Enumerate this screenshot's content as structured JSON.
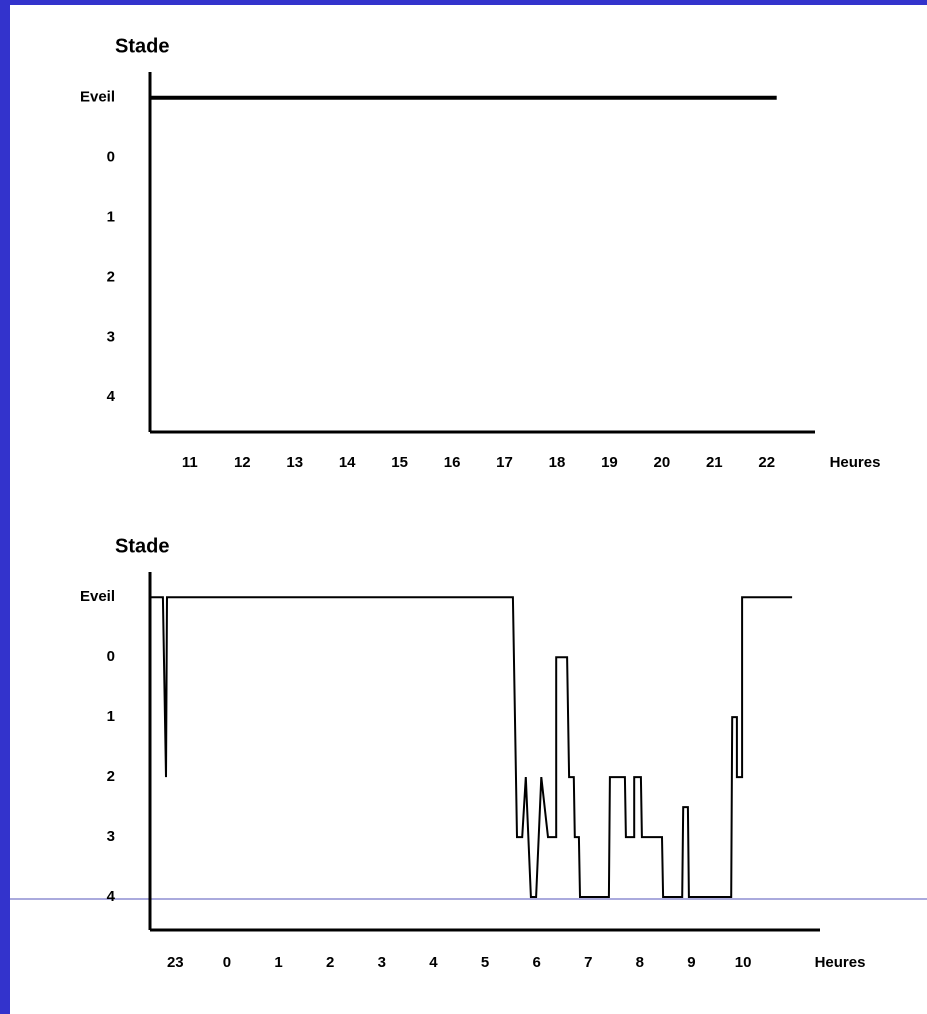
{
  "chart_data": [
    {
      "type": "line",
      "y_label": "Stade",
      "x_label": "Heures",
      "xlim": [
        10.24,
        22.92
      ],
      "xticks": [
        11,
        12,
        13,
        14,
        15,
        16,
        17,
        18,
        19,
        20,
        21,
        22
      ],
      "ylim": [
        4.58,
        -1.43
      ],
      "yticks": [
        {
          "value": -1,
          "label": "Eveil"
        },
        0,
        1,
        2,
        3,
        4
      ],
      "series": [
        {
          "color": "#000000",
          "x": [
            10.24,
            22.19
          ],
          "values": [
            -1,
            -1
          ]
        }
      ]
    },
    {
      "type": "line",
      "y_label": "Stade",
      "x_label": "Heures",
      "xlim": [
        22.51,
        35.49
      ],
      "xticks": [
        {
          "value": 23,
          "label": "23"
        },
        {
          "value": 24,
          "label": "0"
        },
        {
          "value": 25,
          "label": "1"
        },
        {
          "value": 26,
          "label": "2"
        },
        {
          "value": 27,
          "label": "3"
        },
        {
          "value": 28,
          "label": "4"
        },
        {
          "value": 29,
          "label": "5"
        },
        {
          "value": 30,
          "label": "6"
        },
        {
          "value": 31,
          "label": "7"
        },
        {
          "value": 32,
          "label": "8"
        },
        {
          "value": 33,
          "label": "9"
        },
        {
          "value": 34,
          "label": "10"
        }
      ],
      "ylim": [
        4.55,
        -1.42
      ],
      "yticks": [
        {
          "value": -1,
          "label": "Eveil"
        },
        0,
        1,
        2,
        3,
        4
      ],
      "series": [
        {
          "color": "#000000",
          "x": [
            22.51,
            22.76,
            22.82,
            22.84,
            29.54,
            29.62,
            29.72,
            29.79,
            29.89,
            29.99,
            30.09,
            30.22,
            30.38,
            30.38,
            30.59,
            30.63,
            30.72,
            30.74,
            30.82,
            30.84,
            31.4,
            31.42,
            31.71,
            31.73,
            31.89,
            31.89,
            32.02,
            32.04,
            32.43,
            32.45,
            32.82,
            32.84,
            32.93,
            32.95,
            33.77,
            33.79,
            33.88,
            33.88,
            33.98,
            33.98,
            34.95
          ],
          "values": [
            -1,
            -1,
            2,
            -1,
            -1,
            3,
            3,
            2,
            4,
            4,
            2,
            3,
            3,
            0,
            0,
            2,
            2,
            3,
            3,
            4,
            4,
            2,
            2,
            3,
            3,
            2,
            2,
            3,
            3,
            4,
            4,
            2.5,
            2.5,
            4,
            4,
            1,
            1,
            2,
            2,
            -1,
            -1
          ]
        }
      ]
    }
  ]
}
